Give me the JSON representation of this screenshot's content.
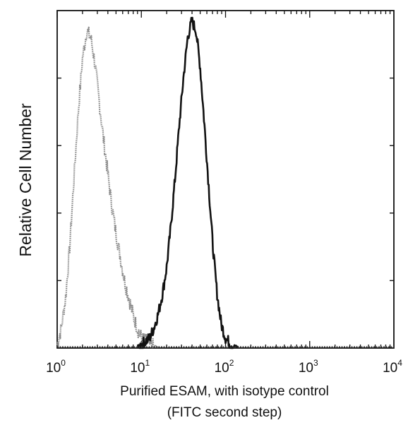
{
  "chart_data": {
    "type": "line",
    "title": "",
    "xlabel": "Purified ESAM, with isotype control",
    "xlabel_line2": "(FITC second step)",
    "ylabel": "Relative Cell Number",
    "xscale": "log",
    "xlim": [
      1,
      10000
    ],
    "ylim": [
      0,
      100
    ],
    "grid": false,
    "legend": "none",
    "x_ticks": [
      {
        "base": "10",
        "exp": "0",
        "value": 1
      },
      {
        "base": "10",
        "exp": "1",
        "value": 10
      },
      {
        "base": "10",
        "exp": "2",
        "value": 100
      },
      {
        "base": "10",
        "exp": "3",
        "value": 1000
      },
      {
        "base": "10",
        "exp": "4",
        "value": 10000
      }
    ],
    "y_ticks": [
      20,
      40,
      60,
      80
    ],
    "series": [
      {
        "color": "#8a8a8a",
        "x": [
          1.0,
          1.12,
          1.26,
          1.41,
          1.58,
          1.78,
          2.0,
          2.24,
          2.51,
          2.82,
          3.16,
          3.55,
          3.98,
          4.47,
          5.01,
          5.62,
          6.31,
          7.08,
          7.94,
          8.91,
          10.0,
          11.2,
          12.6,
          14.1,
          15.8
        ],
        "y": [
          1,
          6,
          15,
          30,
          50,
          70,
          86,
          94,
          92,
          84,
          73,
          62,
          52,
          42,
          34,
          27,
          20,
          15,
          10,
          6,
          3,
          2,
          1,
          0.5,
          0
        ]
      },
      {
        "color": "#111111",
        "x": [
          8.91,
          10.0,
          11.2,
          12.6,
          14.1,
          15.8,
          17.8,
          20.0,
          22.4,
          25.1,
          28.2,
          31.6,
          35.5,
          39.8,
          44.7,
          50.1,
          56.2,
          63.1,
          70.8,
          79.4,
          89.1,
          100,
          112,
          126,
          141
        ],
        "y": [
          0,
          1,
          2,
          3,
          6,
          10,
          16,
          24,
          36,
          50,
          66,
          80,
          92,
          97,
          94,
          83,
          66,
          48,
          30,
          16,
          7,
          3,
          1.5,
          0.5,
          0
        ]
      }
    ]
  }
}
